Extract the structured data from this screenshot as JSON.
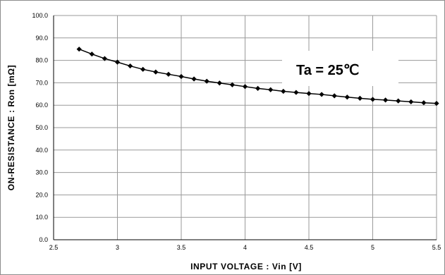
{
  "chart_data": {
    "type": "line",
    "title": "",
    "xlabel": "INPUT VOLTAGE : Vin [V]",
    "ylabel": "ON-RESISTANCE : Ron [mΩ]",
    "xlim": [
      2.5,
      5.5
    ],
    "ylim": [
      0.0,
      100.0
    ],
    "x_ticks": [
      "2.5",
      "3",
      "3.5",
      "4",
      "4.5",
      "5",
      "5.5"
    ],
    "y_ticks": [
      "0.0",
      "10.0",
      "20.0",
      "30.0",
      "40.0",
      "50.0",
      "60.0",
      "70.0",
      "80.0",
      "90.0",
      "100.0"
    ],
    "grid": true,
    "legend": "none",
    "annotation": "Ta = 25℃",
    "series": [
      {
        "marker": "diamond",
        "color": "#000000",
        "x": [
          2.7,
          2.8,
          2.9,
          3.0,
          3.1,
          3.2,
          3.3,
          3.4,
          3.5,
          3.6,
          3.7,
          3.8,
          3.9,
          4.0,
          4.1,
          4.2,
          4.3,
          4.4,
          4.5,
          4.6,
          4.7,
          4.8,
          4.9,
          5.0,
          5.1,
          5.2,
          5.3,
          5.4,
          5.5
        ],
        "y": [
          85.0,
          82.8,
          80.8,
          79.2,
          77.5,
          76.0,
          74.8,
          73.8,
          72.8,
          71.7,
          70.7,
          69.9,
          69.1,
          68.3,
          67.5,
          66.9,
          66.2,
          65.7,
          65.2,
          64.8,
          64.2,
          63.6,
          63.1,
          62.6,
          62.3,
          61.9,
          61.5,
          61.1,
          60.8
        ]
      }
    ]
  }
}
